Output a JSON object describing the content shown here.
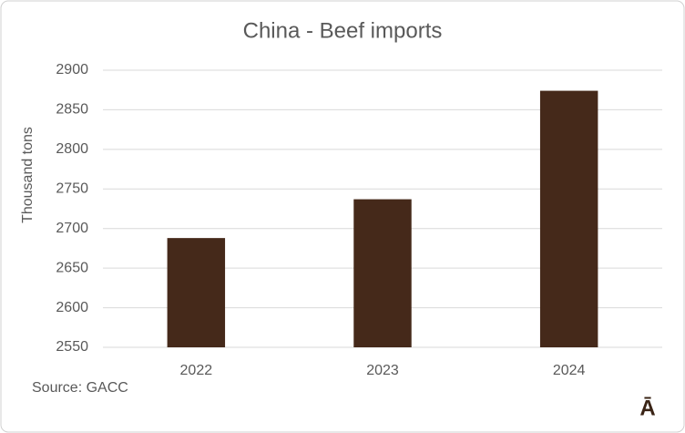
{
  "chart_data": {
    "type": "bar",
    "title": "China - Beef imports",
    "y_label": "Thousand tons",
    "categories": [
      "2022",
      "2023",
      "2024"
    ],
    "values": [
      2688,
      2737,
      2874
    ],
    "color": "#45291a",
    "ylim": [
      2550,
      2900
    ],
    "yticks": [
      2550,
      2600,
      2650,
      2700,
      2750,
      2800,
      2850,
      2900
    ],
    "grid": true,
    "source": "Source: GACC",
    "logo": "Ā"
  }
}
